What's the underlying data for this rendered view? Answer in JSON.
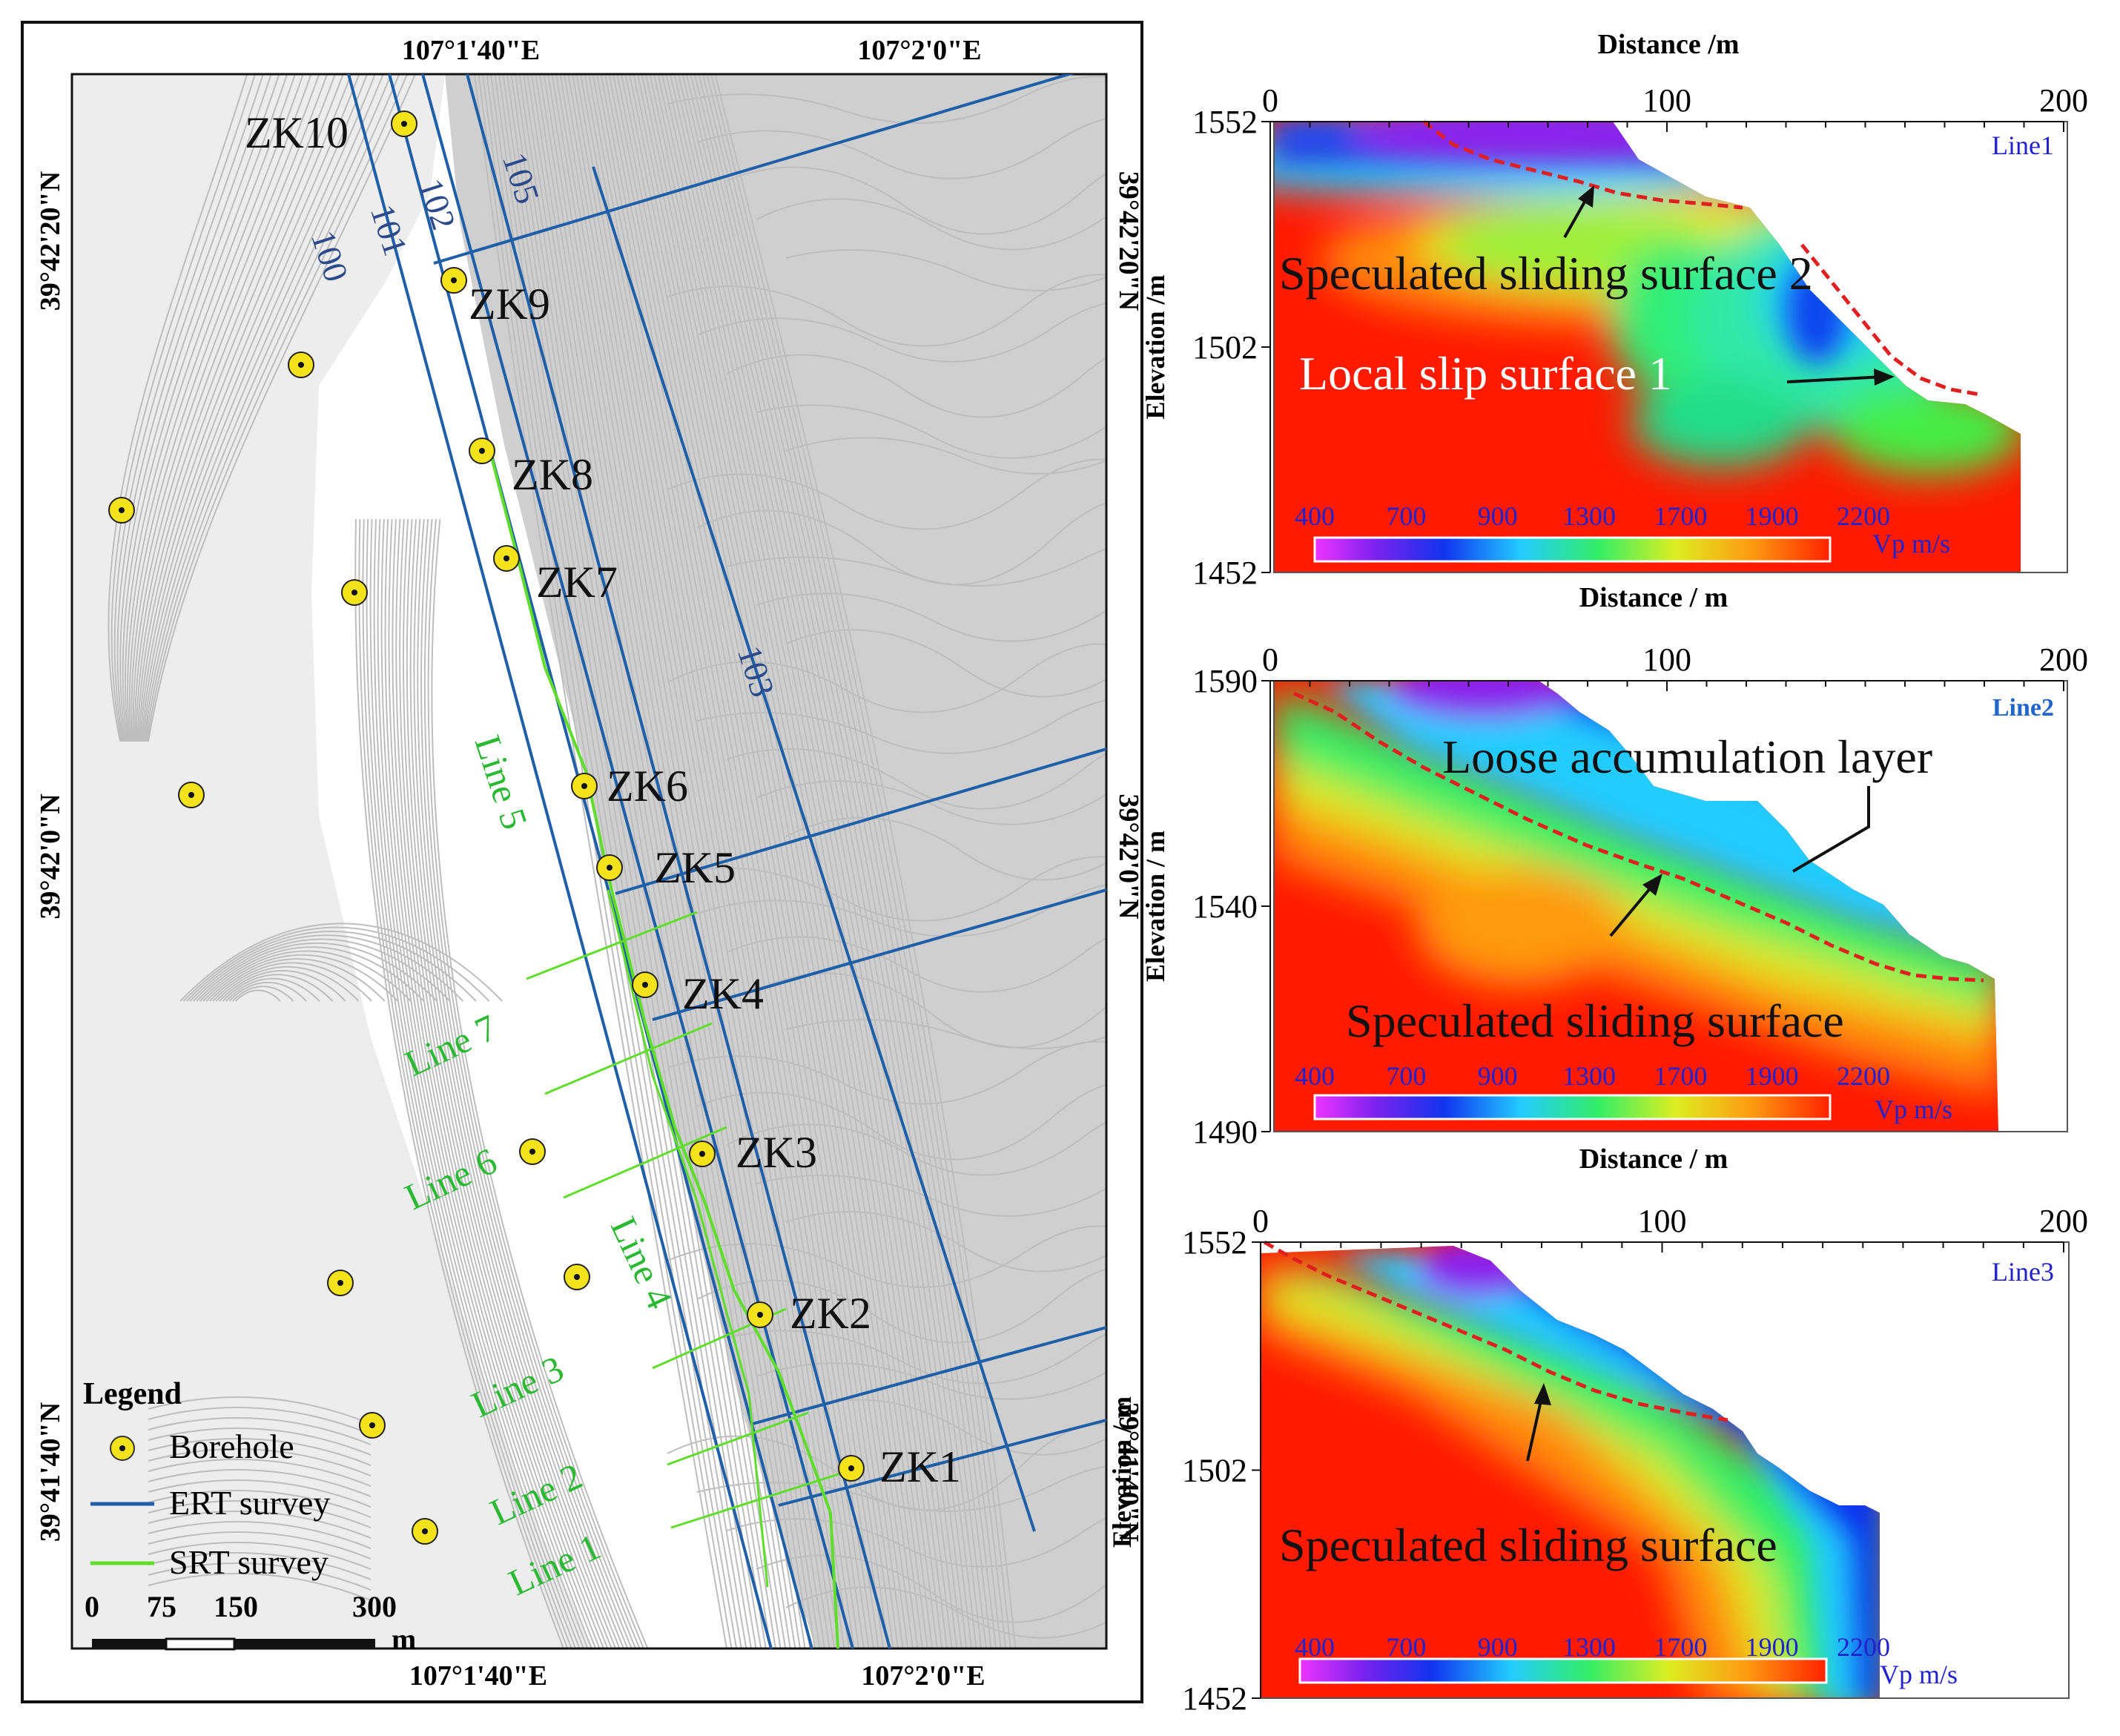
{
  "map": {
    "coord_top": [
      "107°1'40\"E",
      "107°2'0\"E"
    ],
    "coord_bottom": [
      "107°1'40\"E",
      "107°2'0\"E"
    ],
    "coord_left": [
      "39°42'20\"N",
      "39°42'0\"N",
      "39°41'40\"N"
    ],
    "coord_right": [
      "39°42'20\"N",
      "39°42'0\"N",
      "39°41'40\"N"
    ],
    "ert_lines": [
      {
        "label": "100"
      },
      {
        "label": "101"
      },
      {
        "label": "102"
      },
      {
        "label": "105"
      },
      {
        "label": "103"
      }
    ],
    "srt_lines": [
      {
        "label": "Line 5"
      },
      {
        "label": "Line 7"
      },
      {
        "label": "Line 6"
      },
      {
        "label": "Line 4"
      },
      {
        "label": "Line 3"
      },
      {
        "label": "Line 2"
      },
      {
        "label": "Line 1"
      }
    ],
    "boreholes": [
      {
        "label": "ZK10"
      },
      {
        "label": "ZK9"
      },
      {
        "label": "ZK8"
      },
      {
        "label": "ZK7"
      },
      {
        "label": "ZK6"
      },
      {
        "label": "ZK5"
      },
      {
        "label": "ZK4"
      },
      {
        "label": "ZK3"
      },
      {
        "label": "ZK2"
      },
      {
        "label": "ZK1"
      },
      {
        "label": ""
      },
      {
        "label": ""
      },
      {
        "label": ""
      },
      {
        "label": ""
      },
      {
        "label": ""
      },
      {
        "label": ""
      },
      {
        "label": ""
      },
      {
        "label": ""
      },
      {
        "label": ""
      }
    ],
    "legend": {
      "title": "Legend",
      "borehole": "Borehole",
      "ert": "ERT survey",
      "srt": "SRT survey"
    },
    "scale_bar": {
      "ticks": [
        "0",
        "75",
        "150",
        "300"
      ],
      "unit": "m"
    },
    "colors": {
      "ert": "#1f5fa8",
      "srt": "#5fdd2a",
      "srt_label": "#2bb832",
      "ert_label": "#2c4a8a",
      "borehole": "#f4e21a",
      "contour": "#bdbdbd"
    }
  },
  "colorbar": {
    "ticks": [
      "400",
      "700",
      "900",
      "1300",
      "1700",
      "1900",
      "2200"
    ],
    "unit": "Vp m/s"
  },
  "profiles": [
    {
      "name": "Line1",
      "xlabel": "Distance /m",
      "ylabel": "Elevation /m",
      "x_ticks": [
        "0",
        "100",
        "200"
      ],
      "y_ticks": [
        "1552",
        "1502",
        "1452"
      ],
      "annotations": [
        "Speculated sliding surface 2",
        "Local slip surface 1"
      ]
    },
    {
      "name": "Line2",
      "xlabel": "Distance / m",
      "ylabel": "Elevation / m",
      "x_ticks": [
        "0",
        "100",
        "200"
      ],
      "y_ticks": [
        "1590",
        "1540",
        "1490"
      ],
      "annotations": [
        "Loose accumulation layer",
        "Speculated sliding surface"
      ]
    },
    {
      "name": "Line3",
      "xlabel": "Distance / m",
      "ylabel": "Elevation / m",
      "x_ticks": [
        "0",
        "100",
        "200"
      ],
      "y_ticks": [
        "1552",
        "1502",
        "1452"
      ],
      "annotations": [
        "Speculated sliding surface"
      ]
    }
  ]
}
